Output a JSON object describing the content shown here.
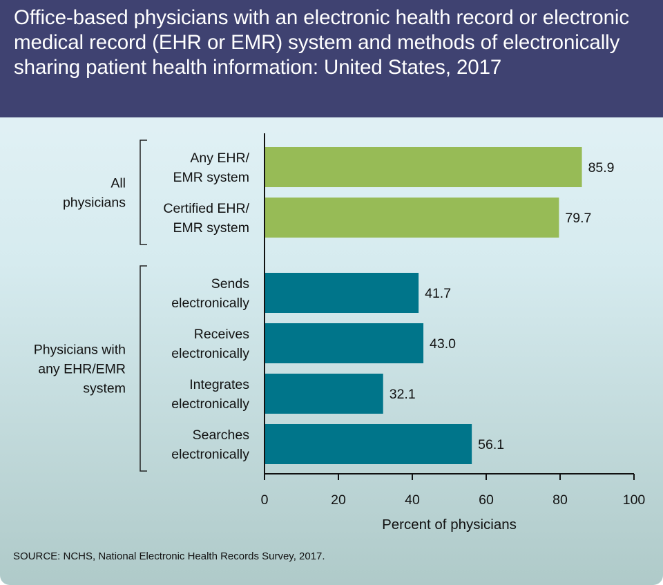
{
  "header": {
    "title": "Office-based physicians with an electronic health record or electronic medical record (EHR or EMR) system and methods of electronically sharing patient health information: United States, 2017"
  },
  "chart_data": {
    "type": "bar",
    "orientation": "horizontal",
    "title": "Office-based physicians with an electronic health record or electronic medical record (EHR or EMR) system and methods of electronically sharing patient health information: United States, 2017",
    "xlabel": "Percent of physicians",
    "ylabel": "",
    "xlim": [
      0,
      100
    ],
    "xticks": [
      "0",
      "20",
      "40",
      "60",
      "80",
      "100"
    ],
    "grid": false,
    "groups": [
      {
        "label": [
          "All",
          "physicians"
        ],
        "color": "#97bb56",
        "bars": [
          {
            "label": [
              "Any EHR/",
              "EMR system"
            ],
            "value": 85.9,
            "display": "85.9"
          },
          {
            "label": [
              "Certified EHR/",
              "EMR system"
            ],
            "value": 79.7,
            "display": "79.7"
          }
        ]
      },
      {
        "label": [
          "Physicians with",
          "any EHR/EMR",
          "system"
        ],
        "color": "#00758a",
        "bars": [
          {
            "label": [
              "Sends",
              "electronically"
            ],
            "value": 41.7,
            "display": "41.7"
          },
          {
            "label": [
              "Receives",
              "electronically"
            ],
            "value": 43.0,
            "display": "43.0"
          },
          {
            "label": [
              "Integrates",
              "electronically"
            ],
            "value": 32.1,
            "display": "32.1"
          },
          {
            "label": [
              "Searches",
              "electronically"
            ],
            "value": 56.1,
            "display": "56.1"
          }
        ]
      }
    ]
  },
  "footer": {
    "source": "SOURCE: NCHS, National Electronic Health Records Survey, 2017."
  }
}
